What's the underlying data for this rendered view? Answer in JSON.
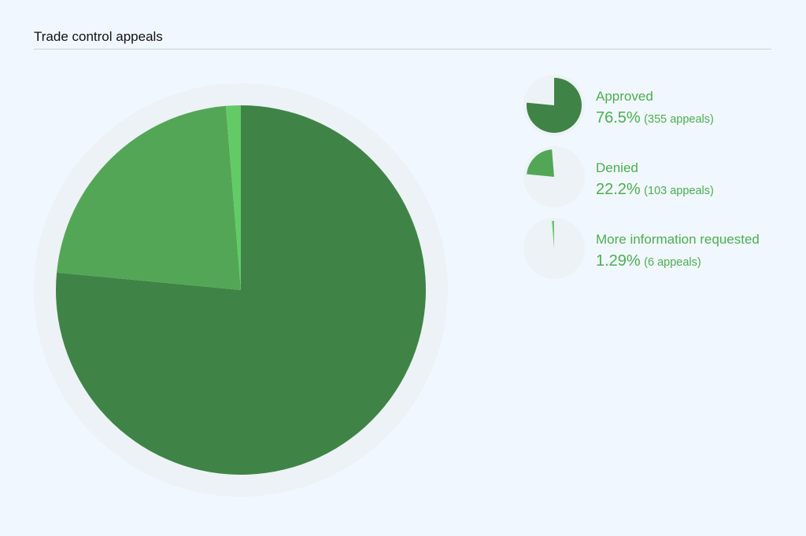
{
  "title": "Trade control appeals",
  "colors": {
    "background": "#f1f7fe",
    "pie_track": "#edf2f6",
    "legend_text": "#4caf50"
  },
  "chart_data": {
    "type": "pie",
    "title": "Trade control appeals",
    "slices": [
      {
        "label": "Approved",
        "value": 355,
        "percent": "76.5%",
        "count_text": "(355 appeals)",
        "color": "#3f8446"
      },
      {
        "label": "Denied",
        "value": 103,
        "percent": "22.2%",
        "count_text": "(103 appeals)",
        "color": "#54a657"
      },
      {
        "label": "More information requested",
        "value": 6,
        "percent": "1.29%",
        "count_text": "(6 appeals)",
        "color": "#62cb66"
      }
    ]
  }
}
